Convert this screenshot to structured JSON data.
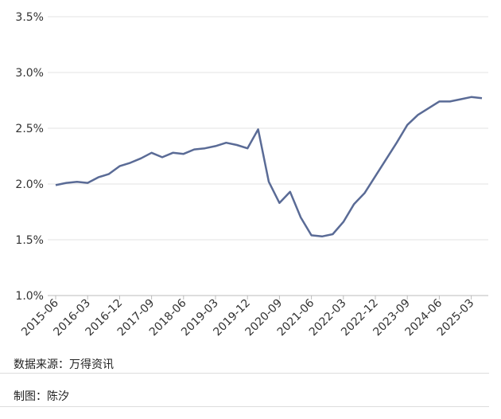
{
  "chart_data": {
    "type": "line",
    "categories": [
      "2015-06",
      null,
      null,
      "2016-03",
      null,
      null,
      "2016-12",
      null,
      null,
      "2017-09",
      null,
      null,
      "2018-06",
      null,
      null,
      "2019-03",
      null,
      null,
      "2019-12",
      null,
      null,
      "2020-09",
      null,
      null,
      "2021-06",
      null,
      null,
      "2022-03",
      null,
      null,
      "2022-12",
      null,
      null,
      "2023-09",
      null,
      null,
      "2024-06",
      null,
      null,
      "2025-03",
      null
    ],
    "series": [
      {
        "color": "#5a6b96",
        "values": [
          1.99,
          2.01,
          2.02,
          2.01,
          2.06,
          2.09,
          2.16,
          2.19,
          2.23,
          2.28,
          2.24,
          2.28,
          2.27,
          2.31,
          2.32,
          2.34,
          2.37,
          2.35,
          2.32,
          2.49,
          2.02,
          1.83,
          1.93,
          1.7,
          1.54,
          1.53,
          1.55,
          1.66,
          1.82,
          1.92,
          2.07,
          2.22,
          2.37,
          2.53,
          2.62,
          2.68,
          2.74,
          2.74,
          2.76,
          2.78,
          2.77
        ]
      }
    ],
    "ylim": [
      1.0,
      3.5
    ],
    "yticks": [
      {
        "value": 1.0,
        "label": "1.0%"
      },
      {
        "value": 1.5,
        "label": "1.5%"
      },
      {
        "value": 2.0,
        "label": "2.0%"
      },
      {
        "value": 2.5,
        "label": "2.5%"
      },
      {
        "value": 3.0,
        "label": "3.0%"
      },
      {
        "value": 3.5,
        "label": "3.5%"
      }
    ],
    "grid": true
  },
  "notes": {
    "source": "数据来源：万得资讯",
    "author": "制图：陈汐"
  }
}
